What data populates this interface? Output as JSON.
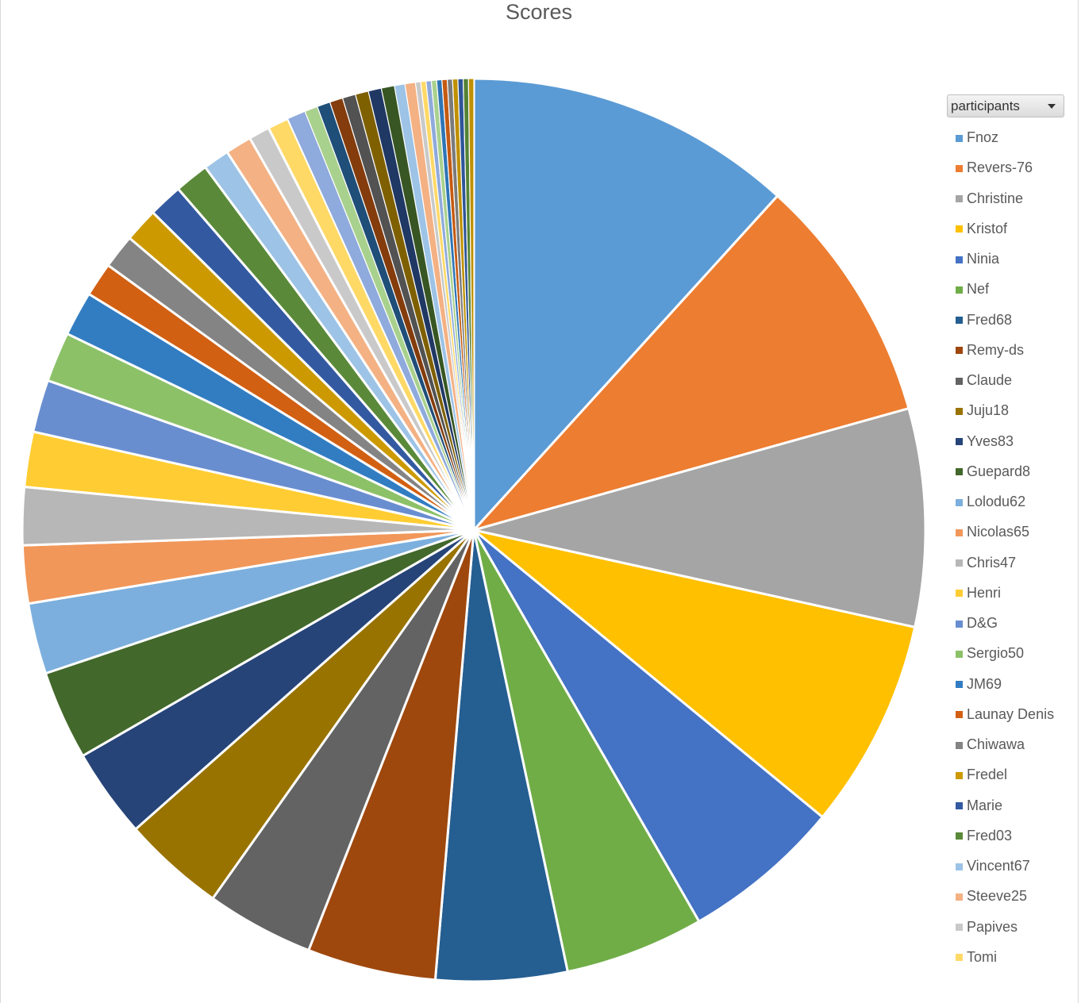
{
  "chart_data": {
    "type": "pie",
    "title": "Scores",
    "legend_filter_label": "participants",
    "legend_position": "right",
    "categories": [
      "Fnoz",
      "Revers-76",
      "Christine",
      "Kristof",
      "Ninia",
      "Nef",
      "Fred68",
      "Remy-ds",
      "Claude",
      "Juju18",
      "Yves83",
      "Guepard8",
      "Lolodu62",
      "Nicolas65",
      "Chris47",
      "Henri",
      "D&G",
      "Sergio50",
      "JM69",
      "Launay Denis",
      "Chiwawa",
      "Fredel",
      "Marie",
      "Fred03",
      "Vincent67",
      "Steeve25",
      "Papives",
      "Tomi",
      "",
      "",
      "",
      "",
      "",
      "",
      "",
      "",
      "",
      "",
      "",
      "",
      "",
      "",
      "",
      "",
      "",
      "",
      "",
      "",
      ""
    ],
    "values": [
      12.5,
      9.5,
      8.3,
      8.0,
      6.1,
      5.3,
      5.0,
      4.9,
      4.1,
      3.9,
      3.4,
      3.4,
      2.7,
      2.2,
      2.2,
      2.1,
      2.0,
      1.9,
      1.7,
      1.3,
      1.3,
      1.3,
      1.3,
      1.3,
      1.0,
      1.0,
      0.8,
      0.8,
      0.7,
      0.5,
      0.5,
      0.5,
      0.5,
      0.5,
      0.5,
      0.5,
      0.4,
      0.4,
      0.2,
      0.2,
      0.2,
      0.2,
      0.2,
      0.2,
      0.2,
      0.2,
      0.2,
      0.2,
      0.2
    ],
    "colors": [
      "#5b9bd5",
      "#ed7d31",
      "#a5a5a5",
      "#ffc000",
      "#4472c4",
      "#70ad47",
      "#255e91",
      "#9e480e",
      "#636363",
      "#997300",
      "#264478",
      "#43682b",
      "#7cafdd",
      "#f1975a",
      "#b7b7b7",
      "#ffcd33",
      "#698ed0",
      "#8cc168",
      "#327dc2",
      "#d26012",
      "#848484",
      "#cc9a00",
      "#335aa1",
      "#5a8a39",
      "#9dc3e6",
      "#f4b183",
      "#c9c9c9",
      "#ffd966",
      "#8faadc",
      "#a9d18e",
      "#1f4e79",
      "#843c0c",
      "#525252",
      "#7f6000",
      "#203864",
      "#375623",
      "#9dc3e6",
      "#f4b183",
      "#c9c9c9",
      "#ffd966",
      "#8faadc",
      "#a9d18e",
      "#2e75b6",
      "#c55a11",
      "#7b7b7b",
      "#bf9000",
      "#2f5597",
      "#548235",
      "#bf9000"
    ]
  }
}
